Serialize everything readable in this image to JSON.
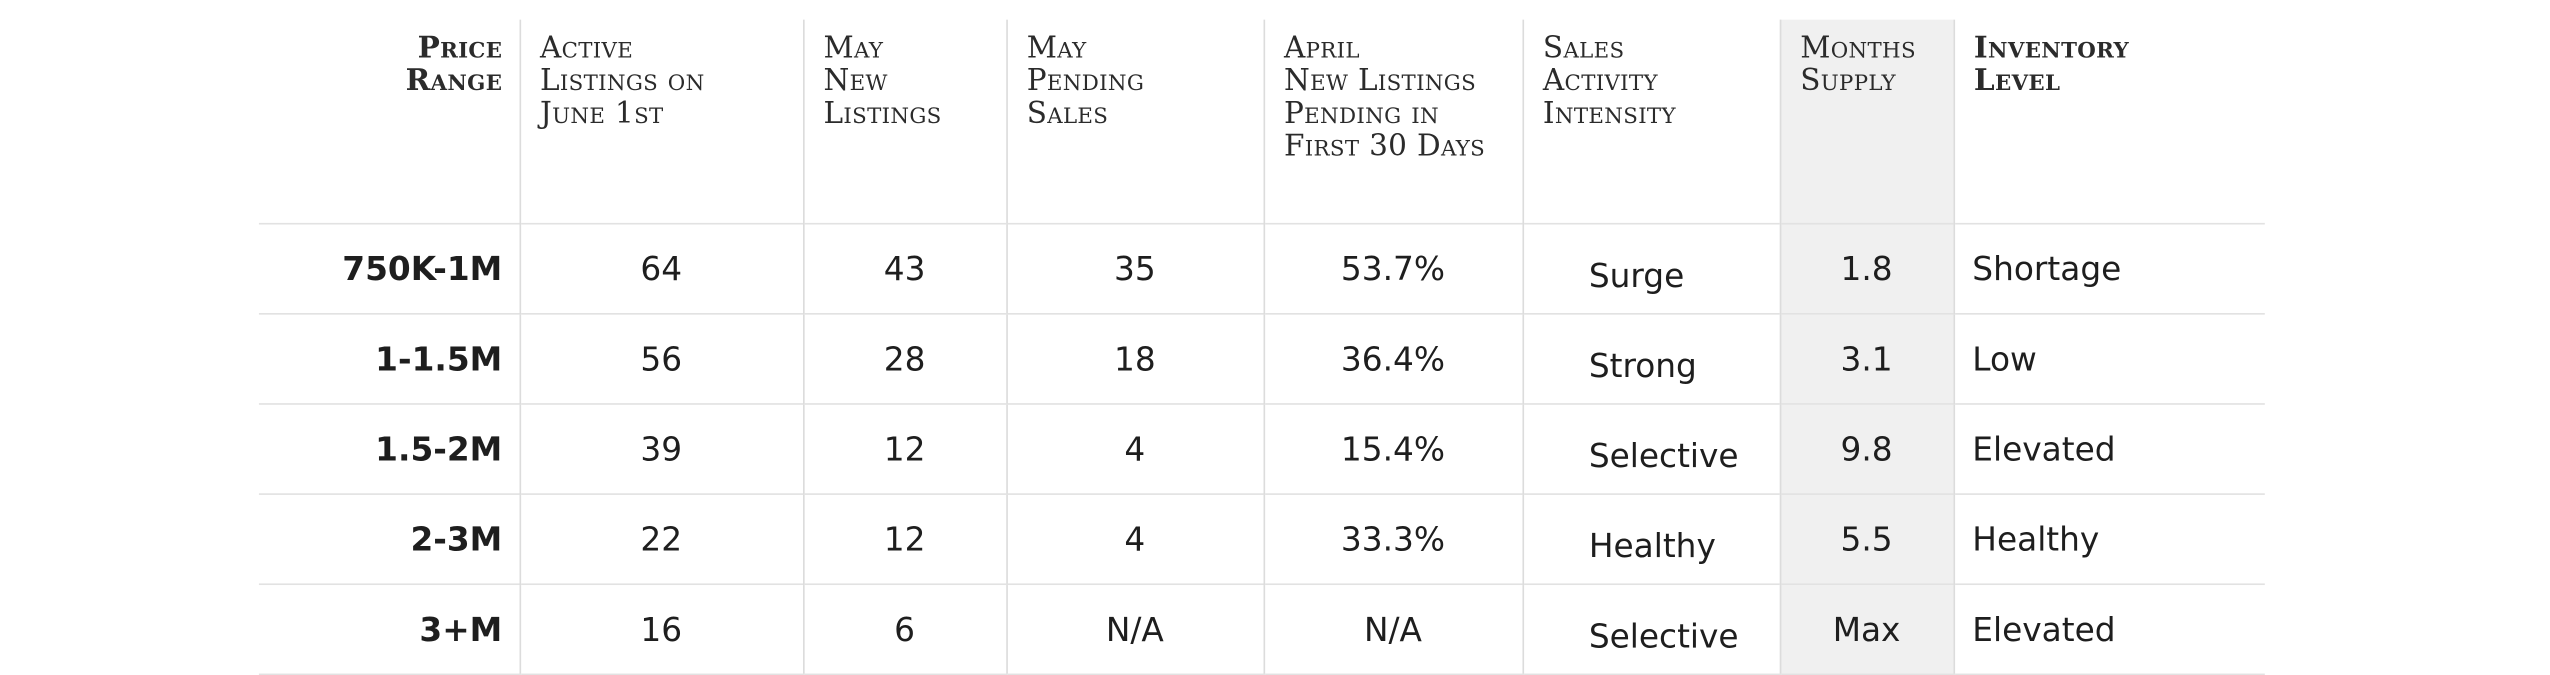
{
  "table": {
    "headers": [
      [
        "Price",
        "Range"
      ],
      [
        "Active",
        "Listings on",
        "June 1st"
      ],
      [
        "May",
        "New",
        "Listings"
      ],
      [
        "May",
        "Pending",
        "Sales"
      ],
      [
        "April",
        "New Listings",
        "Pending in",
        "First 30 Days"
      ],
      [
        "Sales",
        "Activity",
        "Intensity"
      ],
      [
        "Months",
        "Supply"
      ],
      [
        "Inventory",
        "Level"
      ]
    ],
    "rows": [
      [
        "750K-1M",
        "64",
        "43",
        "35",
        "53.7%",
        "Surge",
        "1.8",
        "Shortage"
      ],
      [
        "1-1.5M",
        "56",
        "28",
        "18",
        "36.4%",
        "Strong",
        "3.1",
        "Low"
      ],
      [
        "1.5-2M",
        "39",
        "12",
        "4",
        "15.4%",
        "Selective",
        "9.8",
        "Elevated"
      ],
      [
        "2-3M",
        "22",
        "12",
        "4",
        "33.3%",
        "Healthy",
        "5.5",
        "Healthy"
      ],
      [
        "3+M",
        "16",
        "6",
        "N/A",
        "N/A",
        "Selective",
        "Max",
        "Elevated"
      ]
    ]
  },
  "colors": {
    "highlight_column": "#f0f0f0",
    "rule": "#e2e2e2",
    "text": "#1e1e1e"
  }
}
